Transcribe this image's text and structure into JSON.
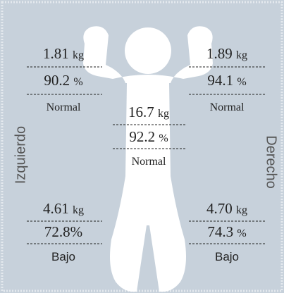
{
  "side_labels": {
    "left": "Izquierdo",
    "right": "Derecho"
  },
  "segments": {
    "left_arm": {
      "mass": {
        "value": "1.81",
        "unit": "kg"
      },
      "percent": {
        "value": "90.2",
        "unit": "%"
      },
      "status": "Normal"
    },
    "right_arm": {
      "mass": {
        "value": "1.89",
        "unit": "kg"
      },
      "percent": {
        "value": "94.1",
        "unit": "%"
      },
      "status": "Normal"
    },
    "trunk": {
      "mass": {
        "value": "16.7",
        "unit": "kg"
      },
      "percent": {
        "value": "92.2",
        "unit": "%"
      },
      "status": "Normal"
    },
    "left_leg": {
      "mass": {
        "value": "4.61",
        "unit": "kg"
      },
      "percent": {
        "value": "72.8%"
      },
      "status": "Bajo"
    },
    "right_leg": {
      "mass": {
        "value": "4.70",
        "unit": "kg"
      },
      "percent": {
        "value": "74.3",
        "unit": "%"
      },
      "status": "Bajo"
    }
  }
}
